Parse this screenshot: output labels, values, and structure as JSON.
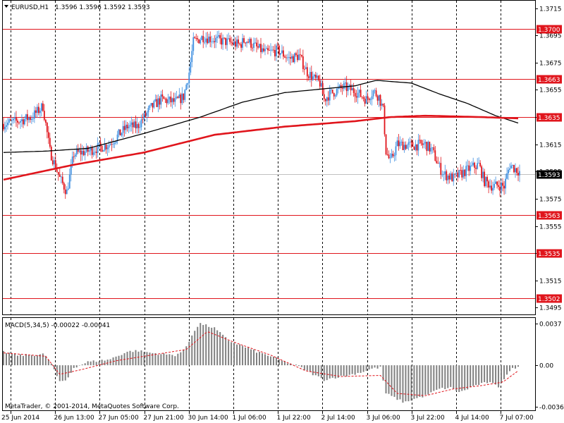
{
  "header": {
    "symbol": "EURUSD,H1",
    "ohlc": "1.3596 1.3596 1.3592 1.3593"
  },
  "indicator": {
    "label": "MACD(5,34,5) -0.00022 -0.00041"
  },
  "footer": {
    "copyright": "MetaTrader, © 2001-2014, MetaQuotes Software Corp."
  },
  "colors": {
    "bull": "#3f8fe0",
    "bear": "#e0151c",
    "level": "#e0151c",
    "ma_fast": "#e0151c",
    "ma_slow": "#000000",
    "macd_hist": "#808080",
    "signal": "#e0151c",
    "bid_line": "#c0c0c0"
  },
  "chart_data": [
    {
      "type": "candlestick",
      "title": "EURUSD,H1",
      "ylim": [
        1.349,
        1.372
      ],
      "y_ticks": [
        "1.3715",
        "1.3695",
        "1.3675",
        "1.3655",
        "1.3635",
        "1.3615",
        "1.3595",
        "1.3575",
        "1.3555",
        "1.3535",
        "1.3515",
        "1.3495"
      ],
      "x_ticks": [
        "25 Jun 2014",
        "26 Jun 13:00",
        "27 Jun 05:00",
        "27 Jun 21:00",
        "30 Jun 14:00",
        "1 Jul 06:00",
        "1 Jul 22:00",
        "2 Jul 14:00",
        "3 Jul 06:00",
        "3 Jul 22:00",
        "4 Jul 14:00",
        "7 Jul 07:00"
      ],
      "levels": [
        {
          "price": 1.37,
          "label": "1.3700"
        },
        {
          "price": 1.3663,
          "label": "1.3663"
        },
        {
          "price": 1.3635,
          "label": "1.3635"
        },
        {
          "price": 1.3563,
          "label": "1.3563"
        },
        {
          "price": 1.3535,
          "label": "1.3535"
        },
        {
          "price": 1.3502,
          "label": "1.3502"
        }
      ],
      "current_price": {
        "price": 1.3593,
        "label": "1.3593"
      },
      "close_path": [
        [
          0,
          1.363
        ],
        [
          10,
          1.3632
        ],
        [
          20,
          1.3635
        ],
        [
          28,
          1.3643
        ],
        [
          33,
          1.361
        ],
        [
          40,
          1.359
        ],
        [
          45,
          1.358
        ],
        [
          50,
          1.3608
        ],
        [
          60,
          1.361
        ],
        [
          75,
          1.3615
        ],
        [
          88,
          1.3628
        ],
        [
          95,
          1.3628
        ],
        [
          105,
          1.3642
        ],
        [
          112,
          1.3648
        ],
        [
          122,
          1.3646
        ],
        [
          128,
          1.365
        ],
        [
          132,
          1.3668
        ],
        [
          135,
          1.369
        ],
        [
          142,
          1.3694
        ],
        [
          150,
          1.3692
        ],
        [
          160,
          1.369
        ],
        [
          168,
          1.3688
        ],
        [
          172,
          1.3692
        ],
        [
          180,
          1.3686
        ],
        [
          187,
          1.3682
        ],
        [
          195,
          1.3684
        ],
        [
          203,
          1.3678
        ],
        [
          210,
          1.368
        ],
        [
          216,
          1.3668
        ],
        [
          221,
          1.3663
        ],
        [
          225,
          1.366
        ],
        [
          228,
          1.3648
        ],
        [
          232,
          1.3652
        ],
        [
          242,
          1.3657
        ],
        [
          250,
          1.3654
        ],
        [
          258,
          1.3648
        ],
        [
          263,
          1.3654
        ],
        [
          267,
          1.365
        ],
        [
          270,
          1.364
        ],
        [
          272,
          1.361
        ],
        [
          275,
          1.3602
        ],
        [
          280,
          1.3615
        ],
        [
          290,
          1.3614
        ],
        [
          300,
          1.3615
        ],
        [
          305,
          1.361
        ],
        [
          310,
          1.3598
        ],
        [
          313,
          1.3593
        ],
        [
          320,
          1.359
        ],
        [
          328,
          1.3595
        ],
        [
          333,
          1.3598
        ],
        [
          338,
          1.36
        ],
        [
          342,
          1.3588
        ],
        [
          348,
          1.3584
        ],
        [
          352,
          1.3585
        ],
        [
          356,
          1.3584
        ],
        [
          360,
          1.36
        ],
        [
          364,
          1.3597
        ],
        [
          367,
          1.3595
        ]
      ],
      "n_candles": 368,
      "ma_slow": [
        [
          0,
          1.3609
        ],
        [
          30,
          1.361
        ],
        [
          60,
          1.3612
        ],
        [
          100,
          1.3623
        ],
        [
          140,
          1.3635
        ],
        [
          170,
          1.3646
        ],
        [
          200,
          1.3653
        ],
        [
          230,
          1.3656
        ],
        [
          250,
          1.3658
        ],
        [
          265,
          1.3662
        ],
        [
          290,
          1.366
        ],
        [
          310,
          1.3652
        ],
        [
          330,
          1.3645
        ],
        [
          350,
          1.3636
        ],
        [
          368,
          1.363
        ]
      ],
      "ma_fast": [
        [
          0,
          1.3589
        ],
        [
          50,
          1.36
        ],
        [
          100,
          1.3609
        ],
        [
          150,
          1.3622
        ],
        [
          200,
          1.3628
        ],
        [
          250,
          1.3632
        ],
        [
          275,
          1.3635
        ],
        [
          300,
          1.3636
        ],
        [
          340,
          1.3635
        ],
        [
          368,
          1.3634
        ]
      ]
    },
    {
      "type": "histogram",
      "title": "MACD(5,34,5) -0.00022 -0.00041",
      "ylim": [
        -0.004,
        0.0042
      ],
      "y_ticks": [
        "0.0037",
        "0.00",
        "-0.00366"
      ],
      "histogram_path": [
        [
          0,
          0.0012
        ],
        [
          10,
          0.0009
        ],
        [
          20,
          0.0009
        ],
        [
          28,
          0.001
        ],
        [
          33,
          0.0004
        ],
        [
          40,
          -0.0015
        ],
        [
          45,
          -0.0013
        ],
        [
          50,
          -0.0002
        ],
        [
          60,
          0.0003
        ],
        [
          75,
          0.0005
        ],
        [
          88,
          0.0012
        ],
        [
          95,
          0.0013
        ],
        [
          105,
          0.0011
        ],
        [
          112,
          0.001
        ],
        [
          122,
          0.0009
        ],
        [
          128,
          0.0013
        ],
        [
          132,
          0.0021
        ],
        [
          135,
          0.003
        ],
        [
          140,
          0.0037
        ],
        [
          150,
          0.0033
        ],
        [
          160,
          0.0022
        ],
        [
          170,
          0.0017
        ],
        [
          180,
          0.0012
        ],
        [
          190,
          0.0008
        ],
        [
          200,
          0.0003
        ],
        [
          210,
          -0.0001
        ],
        [
          220,
          -0.0008
        ],
        [
          228,
          -0.0013
        ],
        [
          235,
          -0.0011
        ],
        [
          245,
          -0.0009
        ],
        [
          255,
          -0.0006
        ],
        [
          262,
          -0.0003
        ],
        [
          268,
          -0.0002
        ],
        [
          272,
          -0.0025
        ],
        [
          280,
          -0.003
        ],
        [
          285,
          -0.0033
        ],
        [
          292,
          -0.003
        ],
        [
          300,
          -0.0027
        ],
        [
          310,
          -0.0021
        ],
        [
          318,
          -0.002
        ],
        [
          325,
          -0.0024
        ],
        [
          335,
          -0.0018
        ],
        [
          345,
          -0.0015
        ],
        [
          352,
          -0.0019
        ],
        [
          358,
          -0.0008
        ],
        [
          363,
          -0.0002
        ],
        [
          367,
          -0.0002
        ]
      ],
      "signal_path": [
        [
          0,
          0.0011
        ],
        [
          30,
          0.0008
        ],
        [
          40,
          -0.0008
        ],
        [
          55,
          -0.0004
        ],
        [
          80,
          0.0004
        ],
        [
          105,
          0.0009
        ],
        [
          130,
          0.0014
        ],
        [
          145,
          0.003
        ],
        [
          165,
          0.002
        ],
        [
          190,
          0.0009
        ],
        [
          215,
          -0.0005
        ],
        [
          240,
          -0.001
        ],
        [
          268,
          -0.0009
        ],
        [
          280,
          -0.0025
        ],
        [
          300,
          -0.0027
        ],
        [
          320,
          -0.0021
        ],
        [
          340,
          -0.0018
        ],
        [
          355,
          -0.0015
        ],
        [
          367,
          -0.0004
        ]
      ]
    }
  ]
}
